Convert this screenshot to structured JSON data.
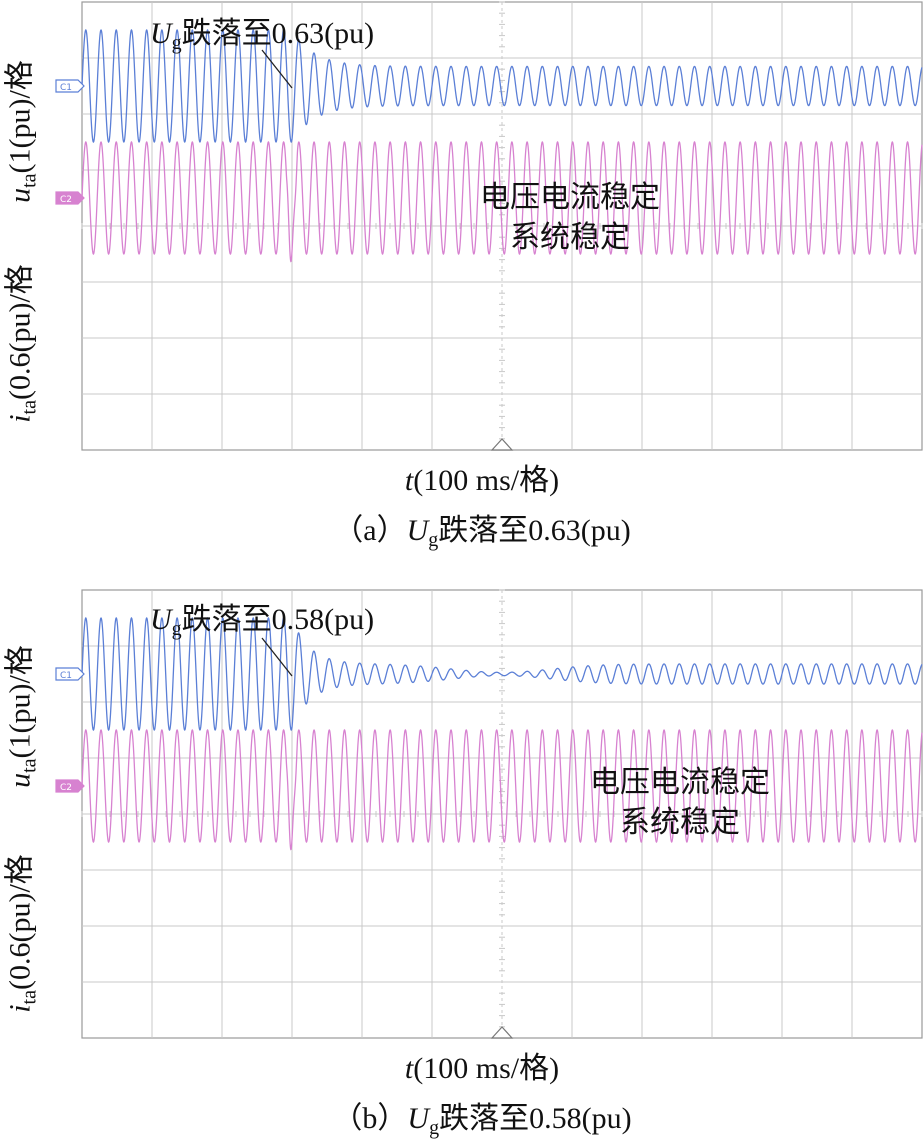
{
  "chart_data": [
    {
      "type": "line",
      "panel": "a",
      "caption_prefix": "（a）",
      "caption_sub": "g",
      "caption_rest": "跌落至0.63(pu)",
      "x_label": {
        "var": "t",
        "rest": "(100 ms/格)"
      },
      "y_label_voltage": {
        "var": "u",
        "sub": "ta",
        "rest": "(1(pu)/格"
      },
      "y_label_current": {
        "var": "i",
        "sub": "ta",
        "rest": "(0.6(pu)/格"
      },
      "annotation": {
        "var": "U",
        "sub": "g",
        "rest": "跌落至0.63(pu)"
      },
      "note_lines": [
        "电压电流稳定",
        "系统稳定"
      ],
      "channel_labels": [
        "C1",
        "C2"
      ],
      "x_divisions": 12,
      "y_divisions": 8,
      "sag_time_div": 3.0,
      "series": [
        {
          "channel": "C1",
          "color": "#5b7fd6",
          "cycles_per_div": 4.6,
          "pre_amplitude_div": 1.0,
          "post_amplitude_div": 0.35,
          "dip_min_amplitude_div": 0.35,
          "settle_time_div": 0.9
        },
        {
          "channel": "C2",
          "color": "#d782d0",
          "cycles_per_div": 4.6,
          "amplitude_div": 1.0
        }
      ]
    },
    {
      "type": "line",
      "panel": "b",
      "caption_prefix": "（b）",
      "caption_sub": "g",
      "caption_rest": "跌落至0.58(pu)",
      "x_label": {
        "var": "t",
        "rest": "(100 ms/格)"
      },
      "y_label_voltage": {
        "var": "u",
        "sub": "ta",
        "rest": "(1(pu)/格"
      },
      "y_label_current": {
        "var": "i",
        "sub": "ta",
        "rest": "(0.6(pu)/格"
      },
      "annotation": {
        "var": "U",
        "sub": "g",
        "rest": "跌落至0.58(pu)"
      },
      "note_lines": [
        "电压电流稳定",
        "系统稳定"
      ],
      "channel_labels": [
        "C1",
        "C2"
      ],
      "x_divisions": 12,
      "y_divisions": 8,
      "sag_time_div": 3.0,
      "series": [
        {
          "channel": "C1",
          "color": "#5b7fd6",
          "cycles_per_div": 4.6,
          "pre_amplitude_div": 1.0,
          "post_amplitude_div": 0.18,
          "dip_min_amplitude_div": 0.03,
          "dip_center_div": 6.0,
          "settle_time_div": 0.7
        },
        {
          "channel": "C2",
          "color": "#d782d0",
          "cycles_per_div": 4.6,
          "amplitude_div": 1.0
        }
      ]
    }
  ]
}
